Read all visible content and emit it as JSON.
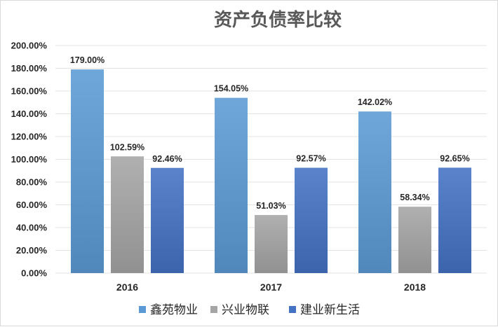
{
  "chart_data": {
    "type": "bar",
    "title": "资产负债率比较",
    "xlabel": "",
    "ylabel": "",
    "categories": [
      "2016",
      "2017",
      "2018"
    ],
    "ylim": [
      0,
      200
    ],
    "yticks": [
      "0.00%",
      "20.00%",
      "40.00%",
      "60.00%",
      "80.00%",
      "100.00%",
      "120.00%",
      "140.00%",
      "160.00%",
      "180.00%",
      "200.00%"
    ],
    "grid": true,
    "legend_position": "bottom",
    "series": [
      {
        "name": "鑫苑物业",
        "color": "#5b9bd5",
        "values": [
          179.0,
          154.05,
          142.02
        ],
        "labels": [
          "179.00%",
          "154.05%",
          "142.02%"
        ]
      },
      {
        "name": "兴业物联",
        "color": "#a5a5a5",
        "values": [
          102.59,
          51.03,
          58.34
        ],
        "labels": [
          "102.59%",
          "51.03%",
          "58.34%"
        ]
      },
      {
        "name": "建业新生活",
        "color": "#4472c4",
        "values": [
          92.46,
          92.57,
          92.65
        ],
        "labels": [
          "92.46%",
          "92.57%",
          "92.65%"
        ]
      }
    ]
  }
}
